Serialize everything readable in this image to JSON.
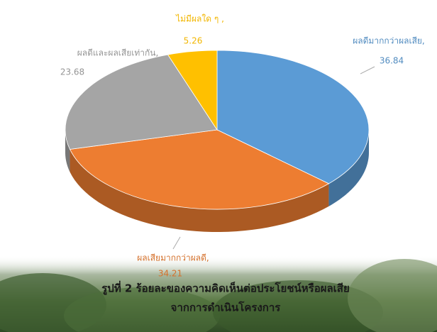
{
  "chart_data": {
    "type": "pie",
    "categories": [
      "ผลดีมากกว่าผลเสีย,",
      "ผลเสียมากกว่าผลดี,",
      "ผลดีและผลเสียเท่ากัน,",
      "ไม่มีผลใด ๆ ,"
    ],
    "values": [
      36.84,
      34.21,
      23.68,
      5.26
    ],
    "colors": [
      "#5b9bd5",
      "#ed7d31",
      "#a5a5a5",
      "#ffc000"
    ],
    "caption": [
      "รูปที่ 2  ร้อยละของความคิดเห็นต่อประโยชน์หรือผลเสีย",
      "จากการดำเนินโครงการ"
    ]
  }
}
